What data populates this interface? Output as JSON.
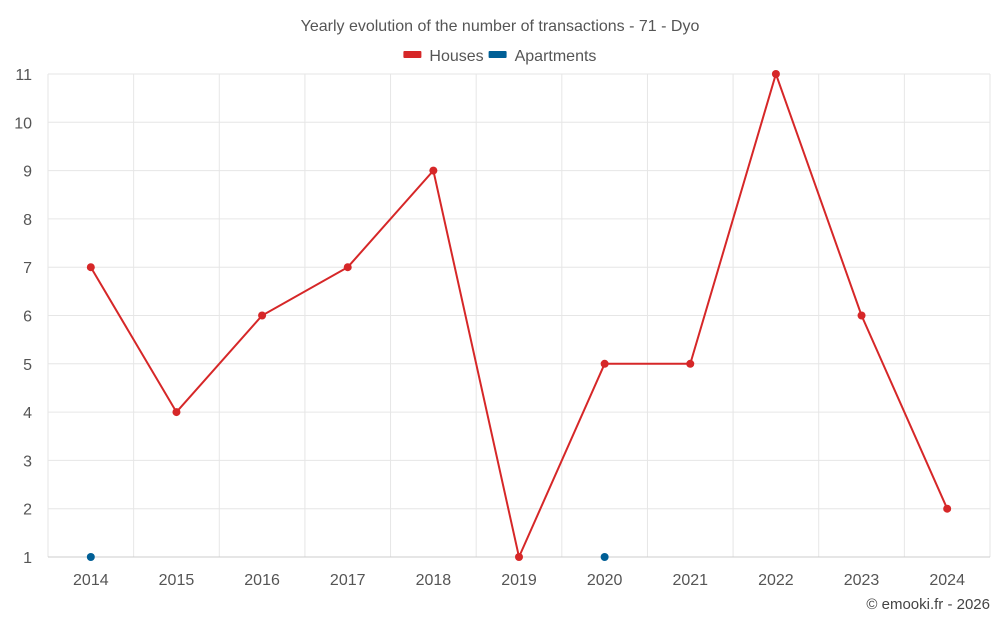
{
  "chart_data": {
    "type": "line",
    "title": "Yearly evolution of the number of transactions - 71 - Dyo",
    "xlabel": "",
    "ylabel": "",
    "categories": [
      "2014",
      "2015",
      "2016",
      "2017",
      "2018",
      "2019",
      "2020",
      "2021",
      "2022",
      "2023",
      "2024"
    ],
    "ylim": [
      1,
      11
    ],
    "yticks": [
      1,
      2,
      3,
      4,
      5,
      6,
      7,
      8,
      9,
      10,
      11
    ],
    "grid": true,
    "legend_position": "top",
    "series": [
      {
        "name": "Houses",
        "color": "#d62728",
        "values": [
          7,
          4,
          6,
          7,
          9,
          1,
          5,
          5,
          11,
          6,
          2
        ]
      },
      {
        "name": "Apartments",
        "color": "#005f96",
        "values": [
          1,
          null,
          null,
          null,
          null,
          null,
          1,
          null,
          null,
          null,
          null
        ]
      }
    ]
  },
  "credit": "© emooki.fr - 2026"
}
